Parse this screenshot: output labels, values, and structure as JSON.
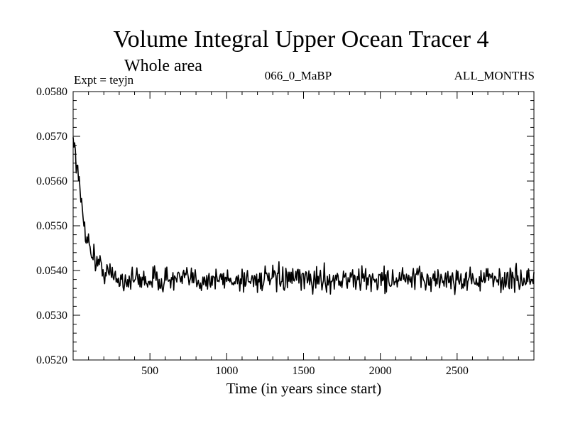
{
  "chart_data": {
    "type": "line",
    "title": "Volume Integral Upper Ocean Tracer 4",
    "subtitle": "Whole area",
    "experiment": "Expt = teyjn",
    "period": "066_0_MaBP",
    "months": "ALL_MONTHS",
    "xlabel": "Time (in years since start)",
    "ylabel": "",
    "xlim": [
      0,
      3000
    ],
    "ylim": [
      0.052,
      0.058
    ],
    "xticks": [
      500,
      1000,
      1500,
      2000,
      2500
    ],
    "yticks": [
      0.052,
      0.053,
      0.054,
      0.055,
      0.056,
      0.057,
      0.058
    ],
    "ytick_labels": [
      "0.0520",
      "0.0530",
      "0.0540",
      "0.0550",
      "0.0560",
      "0.0570",
      "0.0580"
    ],
    "series": [
      {
        "name": "Volume integral",
        "points_every_years": 5,
        "trend": {
          "x": [
            0,
            10,
            25,
            50,
            75,
            100,
            150,
            200,
            300,
            500,
            1000,
            1500,
            2000,
            2500,
            3000
          ],
          "y": [
            0.057,
            0.0568,
            0.0563,
            0.0556,
            0.055,
            0.0546,
            0.0542,
            0.054,
            0.0538,
            0.0538,
            0.0538,
            0.0538,
            0.0538,
            0.0538,
            0.0538
          ]
        },
        "noise_amplitude": 0.0003
      }
    ]
  }
}
